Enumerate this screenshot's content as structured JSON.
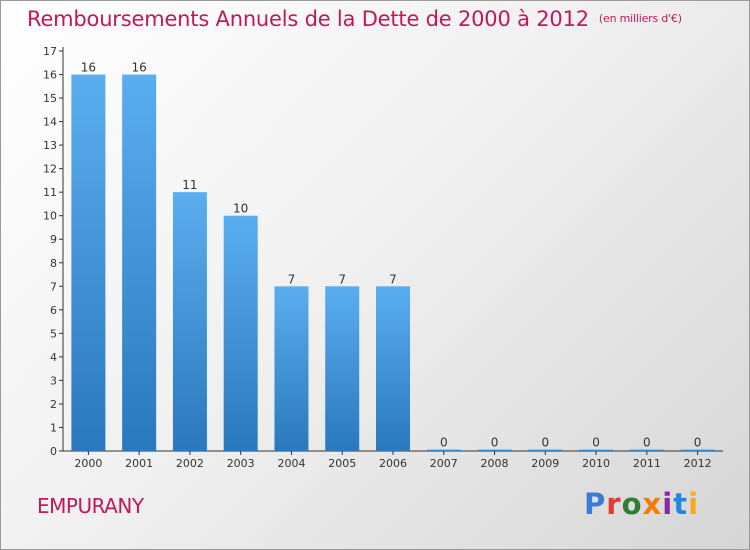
{
  "title": "Remboursements Annuels de la Dette de 2000 à 2012",
  "unit": "(en milliers d'€)",
  "commune": "EMPURANY",
  "logo": {
    "text": "Proxiti",
    "colors": [
      "#3a7bd5",
      "#e53935",
      "#2e7d32",
      "#f57c00",
      "#8e24aa",
      "#1e88e5",
      "#f9a825"
    ]
  },
  "colors": {
    "title": "#c2185b",
    "bar": "#3d95d8",
    "axis": "#333333"
  },
  "chart_data": {
    "type": "bar",
    "categories": [
      "2000",
      "2001",
      "2002",
      "2003",
      "2004",
      "2005",
      "2006",
      "2007",
      "2008",
      "2009",
      "2010",
      "2011",
      "2012"
    ],
    "values": [
      16,
      16,
      11,
      10,
      7,
      7,
      7,
      0,
      0,
      0,
      0,
      0,
      0
    ],
    "data_labels": [
      "16",
      "16",
      "11",
      "10",
      "7",
      "7",
      "7",
      "0",
      "0",
      "0",
      "0",
      "0",
      "0"
    ],
    "ylim": [
      0,
      17
    ],
    "yticks": [
      0,
      1,
      2,
      3,
      4,
      5,
      6,
      7,
      8,
      9,
      10,
      11,
      12,
      13,
      14,
      15,
      16,
      17
    ],
    "title": "Remboursements Annuels de la Dette de 2000 à 2012",
    "xlabel": "",
    "ylabel": "",
    "grid": false
  }
}
